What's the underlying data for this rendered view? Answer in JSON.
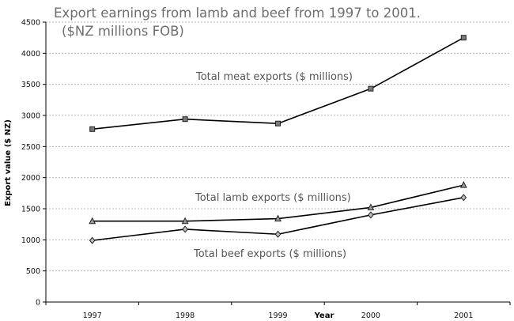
{
  "chart_data": {
    "type": "line",
    "title_line1": "Export earnings from lamb and beef from 1997 to 2001.",
    "title_line2": "($NZ millions FOB)",
    "xlabel": "Year",
    "ylabel": "Export value ($ NZ)",
    "categories": [
      "1997",
      "1998",
      "1999",
      "2000",
      "2001"
    ],
    "ylim": [
      0,
      4500
    ],
    "yticks": [
      0,
      500,
      1000,
      1500,
      2000,
      2500,
      3000,
      3500,
      4000,
      4500
    ],
    "grid": true,
    "series": [
      {
        "key": "meat",
        "name": "Total meat exports ($ millions)",
        "marker": "square",
        "values": [
          2780,
          2940,
          2870,
          3430,
          4250
        ]
      },
      {
        "key": "lamb",
        "name": "Total lamb exports ($ millions)",
        "marker": "triangle",
        "values": [
          1300,
          1300,
          1340,
          1520,
          1880
        ]
      },
      {
        "key": "beef",
        "name": "Total beef exports ($ millions)",
        "marker": "diamond",
        "values": [
          990,
          1170,
          1090,
          1400,
          1680
        ]
      }
    ],
    "colors": {
      "line": "#000000",
      "grid": "#b5b5b5",
      "title": "#6e6e6e",
      "label": "#555555"
    }
  }
}
